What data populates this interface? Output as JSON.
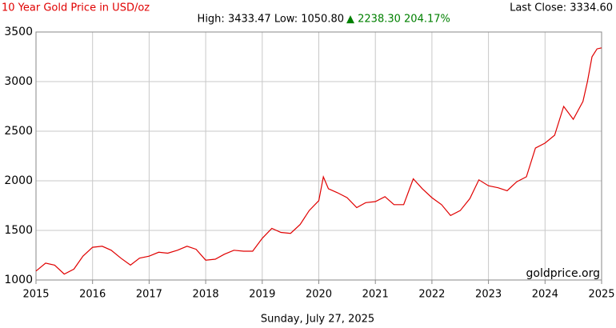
{
  "chart_data": {
    "type": "line",
    "title": "10 Year Gold Price in USD/oz",
    "annotations": [
      "High: 3433.47 Low: 1050.80",
      "▲ 2238.30 204.17%",
      "Last Close: 3334.60",
      "goldprice.org",
      "Sunday, July 27, 2025"
    ],
    "x": [
      2015.0,
      2015.17,
      2015.33,
      2015.5,
      2015.67,
      2015.83,
      2016.0,
      2016.17,
      2016.33,
      2016.5,
      2016.67,
      2016.83,
      2017.0,
      2017.17,
      2017.33,
      2017.5,
      2017.67,
      2017.83,
      2018.0,
      2018.17,
      2018.33,
      2018.5,
      2018.67,
      2018.83,
      2019.0,
      2019.17,
      2019.33,
      2019.5,
      2019.67,
      2019.83,
      2020.0,
      2020.08,
      2020.17,
      2020.33,
      2020.5,
      2020.67,
      2020.83,
      2021.0,
      2021.17,
      2021.33,
      2021.5,
      2021.67,
      2021.83,
      2022.0,
      2022.17,
      2022.33,
      2022.5,
      2022.67,
      2022.83,
      2023.0,
      2023.17,
      2023.33,
      2023.5,
      2023.67,
      2023.83,
      2024.0,
      2024.17,
      2024.33,
      2024.5,
      2024.67,
      2024.75,
      2024.83,
      2024.92,
      2025.0
    ],
    "values": [
      1090,
      1170,
      1150,
      1060,
      1110,
      1240,
      1330,
      1340,
      1300,
      1220,
      1150,
      1220,
      1240,
      1280,
      1270,
      1300,
      1340,
      1310,
      1200,
      1210,
      1260,
      1300,
      1290,
      1290,
      1420,
      1520,
      1480,
      1470,
      1560,
      1700,
      1800,
      2040,
      1920,
      1880,
      1830,
      1730,
      1780,
      1790,
      1840,
      1760,
      1760,
      2020,
      1920,
      1830,
      1760,
      1650,
      1700,
      1820,
      2010,
      1950,
      1930,
      1900,
      1990,
      2040,
      2330,
      2380,
      2460,
      2750,
      2620,
      2800,
      3000,
      3250,
      3330,
      3340
    ],
    "color": "#e00000",
    "xlim": [
      2015,
      2025
    ],
    "xticks": [
      2015,
      2016,
      2017,
      2018,
      2019,
      2020,
      2021,
      2022,
      2023,
      2024,
      2025
    ],
    "ylim": [
      1000,
      3500
    ],
    "yticks": [
      1000,
      1500,
      2000,
      2500,
      3000,
      3500
    ],
    "grid": true
  }
}
